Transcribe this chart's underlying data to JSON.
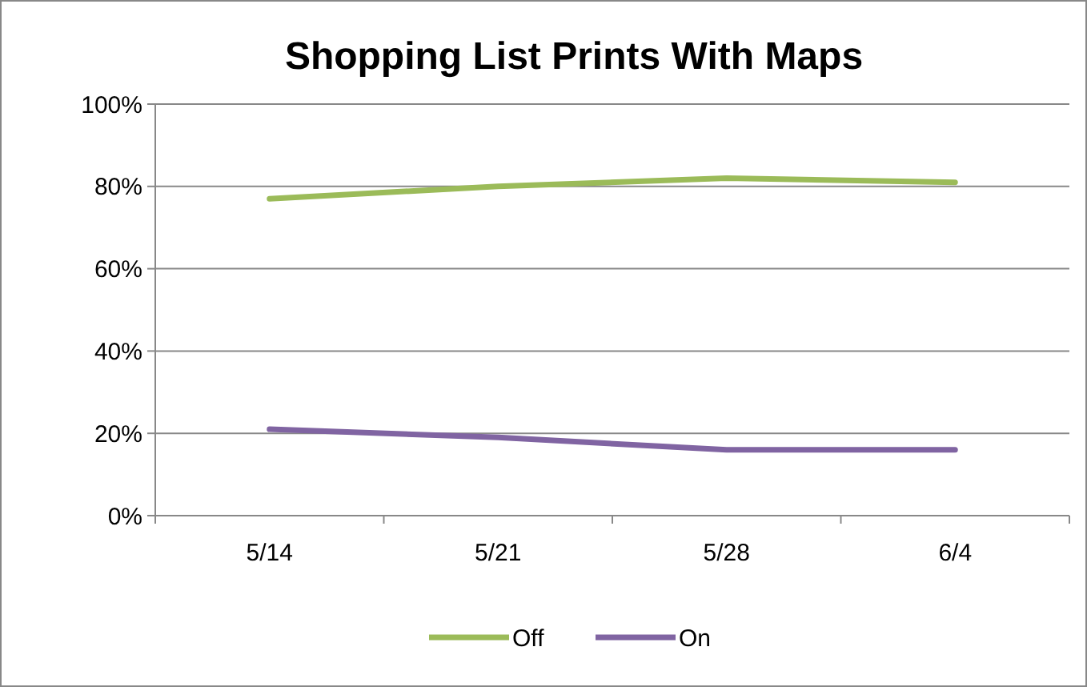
{
  "chart_data": {
    "type": "line",
    "title": "Shopping List Prints With Maps",
    "categories": [
      "5/14",
      "5/21",
      "5/28",
      "6/4"
    ],
    "series": [
      {
        "name": "Off",
        "color": "#9bbb59",
        "values": [
          77,
          80,
          82,
          81
        ]
      },
      {
        "name": "On",
        "color": "#8064a2",
        "values": [
          21,
          19,
          16,
          16
        ]
      }
    ],
    "ylim": [
      0,
      100
    ],
    "yticks": [
      {
        "value": 0,
        "label": "0%"
      },
      {
        "value": 20,
        "label": "20%"
      },
      {
        "value": 40,
        "label": "40%"
      },
      {
        "value": 60,
        "label": "60%"
      },
      {
        "value": 80,
        "label": "80%"
      },
      {
        "value": 100,
        "label": "100%"
      }
    ],
    "grid": "y",
    "legend": "bottom",
    "marker": "none",
    "line_style": "solid"
  }
}
